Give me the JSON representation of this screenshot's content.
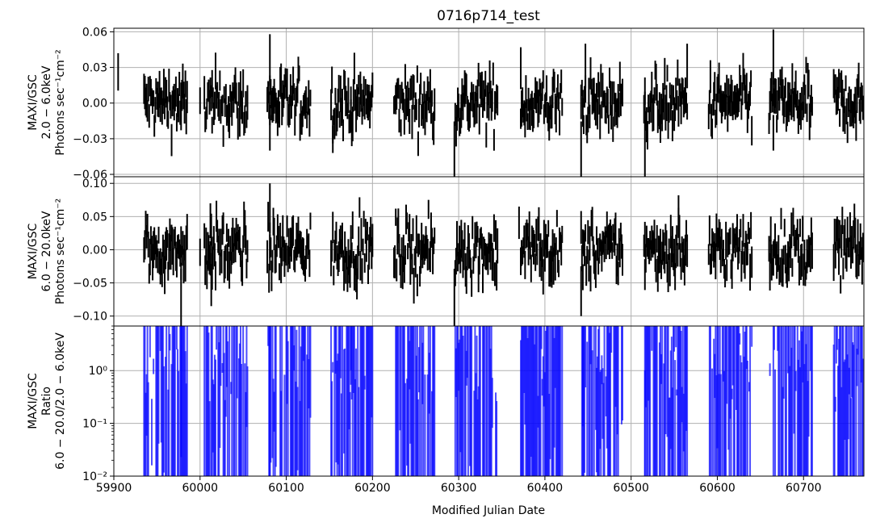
{
  "chart_data": {
    "type": "line",
    "title": "0716p714_test",
    "xlabel": "Modified Julian Date",
    "xlim": [
      59900,
      60770
    ],
    "xticks": [
      59900,
      60000,
      60100,
      60200,
      60300,
      60400,
      60500,
      60600,
      60700
    ],
    "grid": true,
    "data_gaps": [
      [
        59815,
        59935
      ],
      [
        59985,
        60005
      ],
      [
        60055,
        60078
      ],
      [
        60128,
        60152
      ],
      [
        60200,
        60225
      ],
      [
        60272,
        60297
      ],
      [
        60345,
        60372
      ],
      [
        60420,
        60442
      ],
      [
        60490,
        60515
      ],
      [
        60565,
        60590
      ],
      [
        60640,
        60660
      ],
      [
        60710,
        60735
      ]
    ],
    "isolated_points": [
      59978,
      60000,
      60014,
      60081,
      60175,
      60296,
      60444,
      60516
    ],
    "panels": [
      {
        "name": "soft",
        "ylabel": [
          "MAXI/GSC",
          "2.0 − 6.0keV",
          "Photons sec⁻¹cm⁻²"
        ],
        "scale": "linear",
        "ylim": [
          -0.062,
          0.063
        ],
        "yticks": [
          -0.06,
          -0.03,
          0.0,
          0.03,
          0.06
        ],
        "ytick_labels": [
          "−0.06",
          "−0.03",
          "0.00",
          "0.03",
          "0.06"
        ],
        "series": [
          {
            "kind": "errorbar",
            "color": "#000000",
            "noise": 0.012,
            "error": 0.013,
            "spikes": [
              [
                59905,
                0.042
              ],
              [
                60081,
                0.058
              ],
              [
                60081,
                -0.04
              ],
              [
                60154,
                -0.042
              ],
              [
                60295,
                -0.062
              ],
              [
                60372,
                0.047
              ],
              [
                60442,
                -0.062
              ],
              [
                60447,
                0.05
              ],
              [
                60516,
                -0.062
              ],
              [
                60565,
                0.05
              ],
              [
                60665,
                0.062
              ],
              [
                60665,
                -0.04
              ]
            ]
          }
        ]
      },
      {
        "name": "hard",
        "ylabel": [
          "MAXI/GSC",
          "6.0 − 20.0keV",
          "Photons sec⁻¹cm⁻²"
        ],
        "scale": "linear",
        "ylim": [
          -0.115,
          0.11
        ],
        "yticks": [
          -0.1,
          -0.05,
          0.0,
          0.05,
          0.1
        ],
        "ytick_labels": [
          "−0.10",
          "−0.05",
          "0.00",
          "0.05",
          "0.10"
        ],
        "series": [
          {
            "kind": "errorbar",
            "color": "#000000",
            "noise": 0.022,
            "error": 0.024,
            "spikes": [
              [
                59978,
                -0.115
              ],
              [
                60012,
                0.07
              ],
              [
                60013,
                -0.085
              ],
              [
                60081,
                0.1
              ],
              [
                60295,
                -0.115
              ],
              [
                60442,
                -0.1
              ],
              [
                60555,
                0.082
              ],
              [
                60370,
                0.065
              ],
              [
                60662,
                0.05
              ]
            ]
          }
        ]
      },
      {
        "name": "ratio",
        "ylabel": [
          "MAXI/GSC",
          "Ratio",
          "6.0 − 20.0/2.0 − 6.0keV"
        ],
        "scale": "log",
        "ylim": [
          0.01,
          7
        ],
        "yticks": [
          0.01,
          0.1,
          1
        ],
        "ytick_labels": [
          "10⁻²",
          "10⁻¹",
          "10⁰"
        ],
        "series": [
          {
            "kind": "errorbar",
            "color": "#0000ff",
            "alpha": 0.7,
            "lower": 0.01,
            "upper": 7
          }
        ]
      }
    ]
  }
}
